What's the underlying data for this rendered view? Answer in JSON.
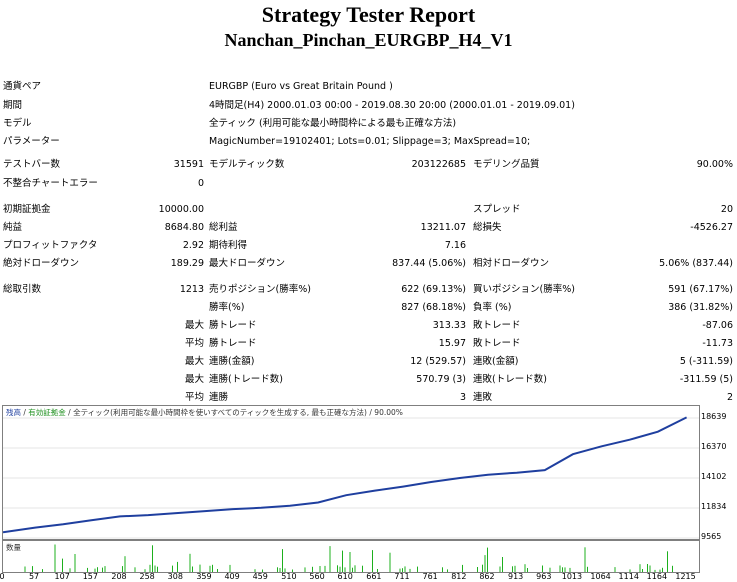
{
  "header": {
    "title": "Strategy Tester Report",
    "subtitle": "Nanchan_Pinchan_EURGBP_H4_V1"
  },
  "info": [
    {
      "label": "通貨ペア",
      "value": "EURGBP (Euro vs Great Britain Pound )"
    },
    {
      "label": "期間",
      "value": "4時間足(H4) 2000.01.03 00:00 - 2019.08.30 20:00 (2000.01.01 - 2019.09.01)"
    },
    {
      "label": "モデル",
      "value": "全ティック (利用可能な最小時間枠による最も正確な方法)"
    },
    {
      "label": "パラメーター",
      "value": "MagicNumber=19102401; Lots=0.01; Slippage=3; MaxSpread=10;"
    }
  ],
  "stats": {
    "bars_label": "テストバー数",
    "bars_value": "31591",
    "ticks_label": "モデルティック数",
    "ticks_value": "203122685",
    "quality_label": "モデリング品質",
    "quality_value": "90.00%",
    "mismatch_label": "不整合チャートエラー",
    "mismatch_value": "0",
    "deposit_label": "初期証拠金",
    "deposit_value": "10000.00",
    "spread_label": "スプレッド",
    "spread_value": "20",
    "net_label": "純益",
    "net_value": "8684.80",
    "gross_profit_label": "総利益",
    "gross_profit_value": "13211.07",
    "gross_loss_label": "総損失",
    "gross_loss_value": "-4526.27",
    "pf_label": "プロフィットファクタ",
    "pf_value": "2.92",
    "payoff_label": "期待利得",
    "payoff_value": "7.16",
    "abs_dd_label": "絶対ドローダウン",
    "abs_dd_value": "189.29",
    "max_dd_label": "最大ドローダウン",
    "max_dd_value": "837.44 (5.06%)",
    "rel_dd_label": "相対ドローダウン",
    "rel_dd_value": "5.06% (837.44)",
    "total_label": "総取引数",
    "total_value": "1213",
    "short_label": "売りポジション(勝率%)",
    "short_value": "622 (69.13%)",
    "long_label": "買いポジション(勝率%)",
    "long_value": "591 (67.17%)",
    "win_label": "勝率(%)",
    "win_value": "827 (68.18%)",
    "loss_label": "負率 (%)",
    "loss_value": "386 (31.82%)",
    "p_max": "最大",
    "p_avg": "平均",
    "largest_win_label": "勝トレード",
    "largest_win_value": "313.33",
    "largest_loss_label": "敗トレード",
    "largest_loss_value": "-87.06",
    "avg_win_label": "勝トレード",
    "avg_win_value": "15.97",
    "avg_loss_label": "敗トレード",
    "avg_loss_value": "-11.73",
    "max_cons_win_label": "連勝(金額)",
    "max_cons_win_value": "12 (529.57)",
    "max_cons_loss_label": "連敗(金額)",
    "max_cons_loss_value": "5 (-311.59)",
    "max_cons_profit_label": "連勝(トレード数)",
    "max_cons_profit_value": "570.79 (3)",
    "max_cons_lossamt_label": "連敗(トレード数)",
    "max_cons_lossamt_value": "-311.59 (5)",
    "avg_cons_win_label": "連勝",
    "avg_cons_win_value": "3",
    "avg_cons_loss_label": "連敗",
    "avg_cons_loss_value": "2"
  },
  "chart_legend": {
    "balance": "残高",
    "equity": "有効証拠金",
    "model": "全ティック(利用可能な最小時間枠を使いすべてのティックを生成する, 最も正確な方法)",
    "quality": "90.00%"
  },
  "volume_label": "数量",
  "colors": {
    "balance": "#1f3f9f",
    "equity": "#1d9f1d",
    "volume": "#1db01d"
  },
  "chart_data": {
    "type": "line",
    "series": [
      {
        "name": "残高",
        "x": [
          0,
          57,
          107,
          157,
          208,
          258,
          308,
          359,
          409,
          459,
          510,
          560,
          610,
          661,
          711,
          761,
          812,
          862,
          913,
          963,
          1013,
          1064,
          1114,
          1164,
          1215
        ],
        "values": [
          10000,
          10350,
          10600,
          10900,
          11200,
          11300,
          11450,
          11600,
          11750,
          11850,
          12000,
          12250,
          12800,
          13150,
          13450,
          13800,
          14100,
          14350,
          14500,
          14700,
          15900,
          16500,
          17000,
          17600,
          18685
        ]
      }
    ],
    "yticks": [
      "18639",
      "16370",
      "14102",
      "11834",
      "9565"
    ],
    "xticks": [
      "0",
      "57",
      "107",
      "157",
      "208",
      "258",
      "308",
      "359",
      "409",
      "459",
      "510",
      "560",
      "610",
      "661",
      "711",
      "761",
      "812",
      "862",
      "913",
      "963",
      "1013",
      "1064",
      "1114",
      "1164",
      "1215"
    ],
    "ylim": [
      9565,
      18639
    ],
    "xlim": [
      0,
      1230
    ]
  }
}
